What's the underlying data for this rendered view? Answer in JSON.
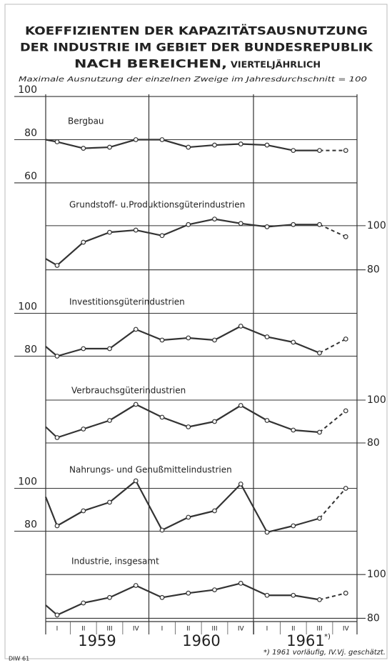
{
  "header": {
    "title": [
      "KOEFFIZIENTEN DER KAPAZITÄTSAUSNUTZUNG",
      "DER INDUSTRIE IM GEBIET DER BUNDESREPUBLIK",
      "NACH BEREICHEN,"
    ],
    "title_suffix": "VIERTELJÄHRLICH",
    "subtitle": "Maximale Ausnutzung der einzelnen Zweige im Jahresdurchschnitt = 100"
  },
  "chart_data": [
    {
      "type": "line",
      "title": "Bergbau",
      "values": [
        80,
        79,
        76,
        76.5,
        80,
        80,
        76.5,
        77.5,
        78,
        77.5,
        75,
        75,
        75
      ],
      "ylim": [
        58,
        101
      ],
      "yticks": [
        60,
        80,
        100
      ],
      "axis_side": "left",
      "dashed_last_segment": true,
      "color": "#333333"
    },
    {
      "type": "line",
      "title": "Grundstoff- u.Produktionsgüterindustrien",
      "values": [
        85,
        82,
        92.5,
        97,
        98,
        95.5,
        100.5,
        103,
        101,
        99.5,
        100.5,
        100.5,
        95
      ],
      "ylim": [
        76,
        115.5
      ],
      "yticks": [
        80,
        100
      ],
      "axis_side": "right",
      "dashed_last_segment": true,
      "color": "#333333"
    },
    {
      "type": "line",
      "title": "Investitionsgüterindustrien",
      "values": [
        84.5,
        80,
        83.5,
        83.5,
        92.5,
        87.5,
        88.5,
        87.5,
        94,
        89,
        86.5,
        81.5,
        88
      ],
      "ylim": [
        75.5,
        109.5
      ],
      "yticks": [
        80,
        100
      ],
      "axis_side": "left",
      "dashed_last_segment": true,
      "color": "#333333"
    },
    {
      "type": "line",
      "title": "Verbrauchsgüterindustrien",
      "values": [
        87.5,
        82.5,
        86.5,
        90.5,
        98,
        92,
        87.5,
        90,
        97.5,
        90.5,
        86,
        85,
        95
      ],
      "ylim": [
        76,
        110
      ],
      "yticks": [
        80,
        100
      ],
      "axis_side": "right",
      "dashed_last_segment": true,
      "color": "#333333"
    },
    {
      "type": "line",
      "title": "Nahrungs- und Genußmittelindustrien",
      "values": [
        96,
        82.5,
        89.5,
        93.5,
        103.5,
        80.5,
        86.5,
        89.5,
        102,
        79.5,
        82.5,
        86,
        100
      ],
      "ylim": [
        74.5,
        114.5
      ],
      "yticks": [
        80,
        100
      ],
      "axis_side": "left",
      "dashed_last_segment": true,
      "color": "#333333"
    },
    {
      "type": "line",
      "title": "Industrie, insgesamt",
      "categories": [
        null,
        "I",
        "II",
        "III",
        "IV",
        "I",
        "II",
        "III",
        "IV",
        "I",
        "II",
        "III",
        "IV"
      ],
      "values": [
        86,
        81.5,
        87,
        89.5,
        95,
        89.5,
        91.5,
        93,
        96,
        90.5,
        90.5,
        88.5,
        91.5
      ],
      "ylim": [
        78.5,
        110.5
      ],
      "yticks": [
        80,
        100
      ],
      "axis_side": "right",
      "dashed_last_segment": true,
      "color": "#333333"
    }
  ],
  "x_axis": {
    "years": [
      "1959",
      "1960",
      "1961"
    ],
    "year_note": "*)"
  },
  "footnote": "*) 1961 vorläufig, IV.Vj. geschätzt.",
  "credit": "DIW 61"
}
